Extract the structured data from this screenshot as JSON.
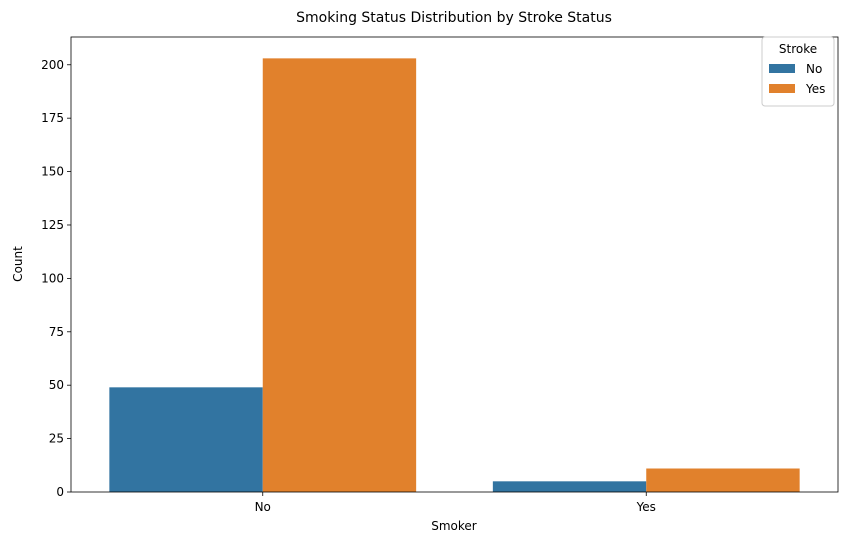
{
  "chart_data": {
    "type": "bar",
    "title": "Smoking Status Distribution by Stroke Status",
    "xlabel": "Smoker",
    "ylabel": "Count",
    "categories": [
      "No",
      "Yes"
    ],
    "series": [
      {
        "name": "No",
        "values": [
          49,
          5
        ],
        "color": "#3274a1"
      },
      {
        "name": "Yes",
        "values": [
          203,
          11
        ],
        "color": "#e1812c"
      }
    ],
    "ylim": [
      0,
      213
    ],
    "yticks": [
      0,
      25,
      50,
      75,
      100,
      125,
      150,
      175,
      200
    ],
    "legend": {
      "title": "Stroke",
      "placement": "top-right"
    },
    "grid": false
  }
}
